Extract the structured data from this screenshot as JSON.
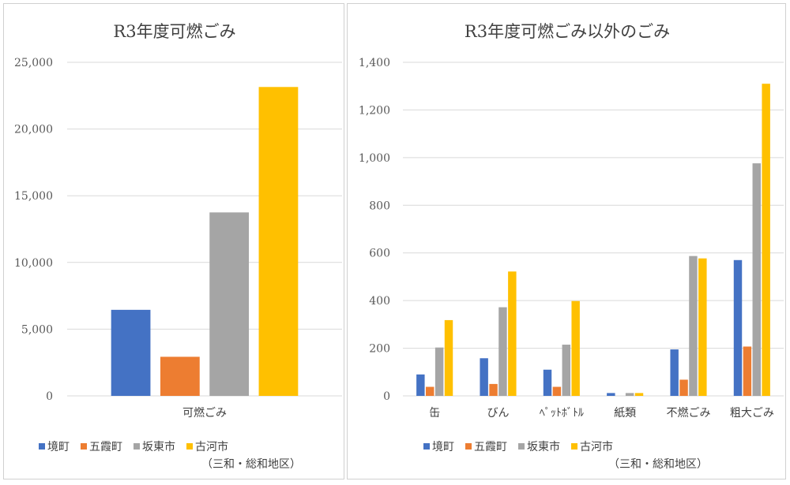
{
  "chart_data": [
    {
      "type": "bar",
      "title": "R3年度可燃ごみ",
      "categories": [
        "可燃ごみ"
      ],
      "series": [
        {
          "name": "境町",
          "color": "#4472C4",
          "values": [
            6450
          ]
        },
        {
          "name": "五霞町",
          "color": "#ED7D31",
          "values": [
            2930
          ]
        },
        {
          "name": "坂東市",
          "color": "#A5A5A5",
          "values": [
            13750
          ]
        },
        {
          "name": "古河市",
          "color": "#FFC000",
          "values": [
            23150
          ]
        }
      ],
      "yticks": [
        "0",
        "5,000",
        "10,000",
        "15,000",
        "20,000",
        "25,000"
      ],
      "ylim": [
        0,
        25000
      ],
      "grid": true,
      "legend": "bottom",
      "note": "（三和・総和地区）"
    },
    {
      "type": "bar",
      "title": "R3年度可燃ごみ以外のごみ",
      "categories": [
        "缶",
        "びん",
        "ﾍﾟｯﾄﾎﾞﾄﾙ",
        "紙類",
        "不燃ごみ",
        "粗大ごみ"
      ],
      "series": [
        {
          "name": "境町",
          "color": "#4472C4",
          "values": [
            90,
            158,
            110,
            12,
            195,
            570
          ]
        },
        {
          "name": "五霞町",
          "color": "#ED7D31",
          "values": [
            38,
            50,
            38,
            0,
            68,
            207
          ]
        },
        {
          "name": "坂東市",
          "color": "#A5A5A5",
          "values": [
            203,
            372,
            215,
            12,
            587,
            976
          ]
        },
        {
          "name": "古河市",
          "color": "#FFC000",
          "values": [
            318,
            522,
            398,
            12,
            577,
            1310
          ]
        }
      ],
      "yticks": [
        "0",
        "200",
        "400",
        "600",
        "800",
        "1,000",
        "1,200",
        "1,400"
      ],
      "ylim": [
        0,
        1400
      ],
      "grid": true,
      "legend": "bottom",
      "note": "（三和・総和地区）"
    }
  ]
}
